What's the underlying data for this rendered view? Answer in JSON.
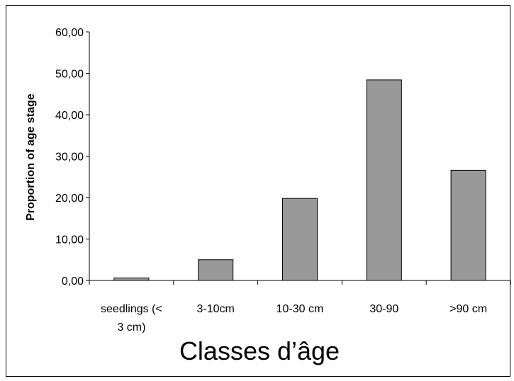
{
  "chart_data": {
    "type": "bar",
    "title": "",
    "ylabel": "Proportion of age stage",
    "xlabel": "Classes d’âge",
    "categories": [
      [
        "seedlings (<",
        "3 cm)"
      ],
      [
        "3-10cm"
      ],
      [
        "10-30 cm"
      ],
      [
        "30-90"
      ],
      [
        ">90 cm"
      ]
    ],
    "values": [
      0.6,
      5.0,
      19.8,
      48.4,
      26.6
    ],
    "ylim": [
      0,
      60
    ],
    "yticks": [
      "0,00",
      "10,00",
      "20,00",
      "30,00",
      "40,00",
      "50,00",
      "60,00"
    ],
    "grid": false,
    "legend": "none",
    "bar_color": "#999999",
    "bar_stroke": "#000000"
  }
}
